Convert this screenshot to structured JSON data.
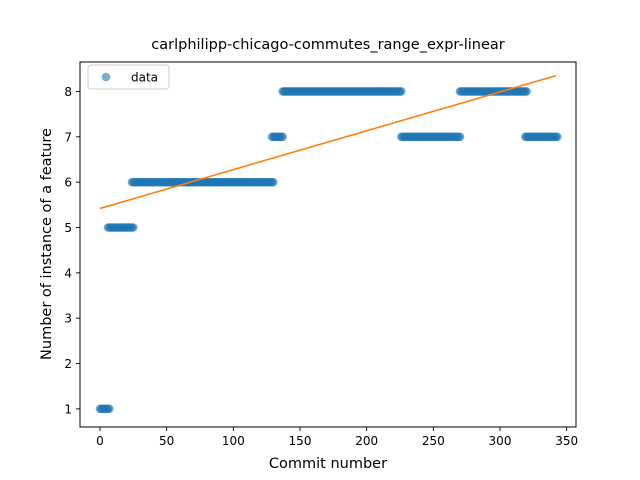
{
  "chart_data": {
    "type": "scatter",
    "title": "carlphilipp-chicago-commutes_range_expr-linear",
    "xlabel": "Commit number",
    "ylabel": "Number of instance of a feature",
    "xlim": [
      -15,
      357
    ],
    "ylim": [
      0.6,
      8.65
    ],
    "xticks": [
      0,
      50,
      100,
      150,
      200,
      250,
      300,
      350
    ],
    "yticks": [
      1,
      2,
      3,
      4,
      5,
      6,
      7,
      8
    ],
    "grid": false,
    "legend": {
      "location": "upper-left",
      "entries": [
        "data"
      ]
    },
    "series": [
      {
        "name": "data",
        "kind": "points",
        "color": "#1f77b4",
        "alpha": 0.6,
        "segments": [
          {
            "x_start": 0,
            "x_end": 7,
            "y": 1
          },
          {
            "x_start": 6,
            "x_end": 25,
            "y": 5
          },
          {
            "x_start": 24,
            "x_end": 130,
            "y": 6
          },
          {
            "x_start": 129,
            "x_end": 137,
            "y": 7
          },
          {
            "x_start": 137,
            "x_end": 226,
            "y": 8
          },
          {
            "x_start": 226,
            "x_end": 270,
            "y": 7
          },
          {
            "x_start": 270,
            "x_end": 320,
            "y": 8
          },
          {
            "x_start": 319,
            "x_end": 343,
            "y": 7
          }
        ]
      },
      {
        "kind": "line",
        "color": "#ff7f0e",
        "points": [
          [
            0,
            5.42
          ],
          [
            342,
            8.35
          ]
        ]
      }
    ]
  }
}
